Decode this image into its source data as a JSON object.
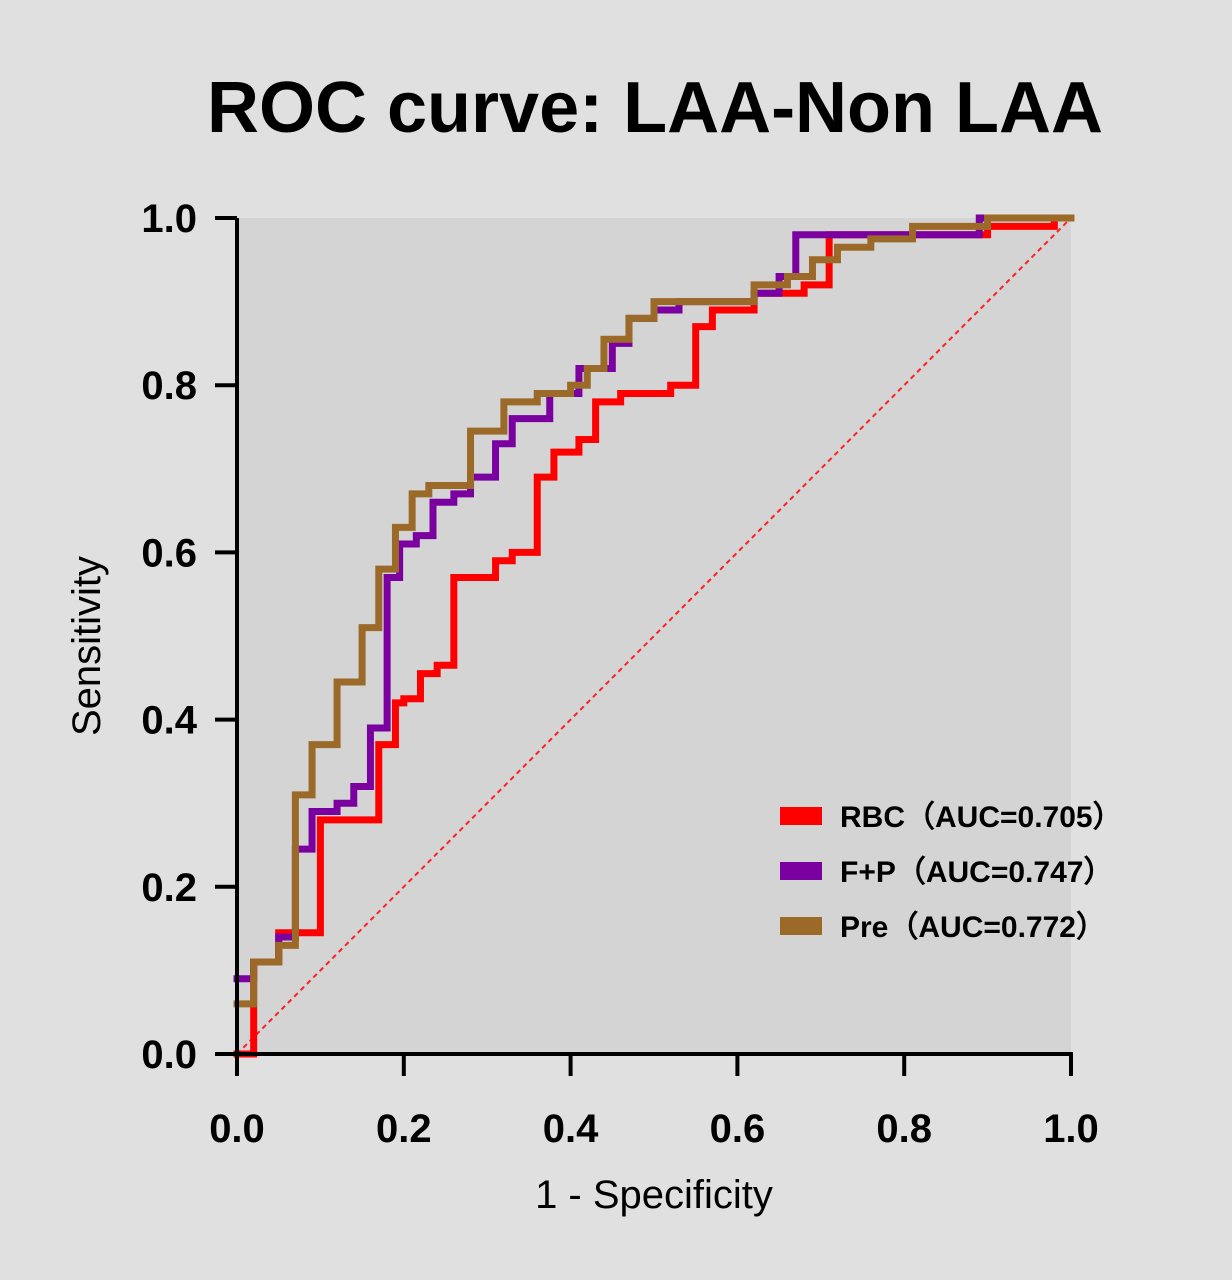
{
  "chart_data": {
    "type": "line",
    "title": "ROC curve:  LAA-Non LAA",
    "xlabel": "1 - Specificity",
    "ylabel": "Sensitivity",
    "xlim": [
      0,
      1
    ],
    "ylim": [
      0,
      1
    ],
    "xticks": [
      "0.0",
      "0.2",
      "0.4",
      "0.6",
      "0.8",
      "1.0"
    ],
    "yticks": [
      "0.0",
      "0.2",
      "0.4",
      "0.6",
      "0.8",
      "1.0"
    ],
    "grid": false,
    "legend_position": "bottom-right",
    "reference_line": {
      "x": [
        0,
        1
      ],
      "y": [
        0,
        1
      ],
      "color": "#ff2020",
      "style": "dashed"
    },
    "series": [
      {
        "name": "RBC（AUC=0.705）",
        "color": "#ff0000",
        "step": true,
        "x": [
          0,
          0.02,
          0.05,
          0.1,
          0.17,
          0.19,
          0.2,
          0.22,
          0.24,
          0.26,
          0.31,
          0.33,
          0.36,
          0.38,
          0.41,
          0.43,
          0.46,
          0.52,
          0.55,
          0.57,
          0.62,
          0.68,
          0.71,
          0.76,
          0.9,
          0.98,
          1.0
        ],
        "y": [
          0,
          0.11,
          0.145,
          0.28,
          0.37,
          0.42,
          0.425,
          0.455,
          0.465,
          0.57,
          0.59,
          0.6,
          0.69,
          0.72,
          0.735,
          0.78,
          0.79,
          0.8,
          0.87,
          0.89,
          0.91,
          0.92,
          0.98,
          0.98,
          0.99,
          1.0,
          1.0
        ]
      },
      {
        "name": "F+P（AUC=0.747）",
        "color": "#7a00a0",
        "step": true,
        "x": [
          0,
          0.02,
          0.05,
          0.07,
          0.09,
          0.12,
          0.14,
          0.16,
          0.18,
          0.195,
          0.215,
          0.235,
          0.26,
          0.28,
          0.31,
          0.33,
          0.35,
          0.375,
          0.41,
          0.45,
          0.47,
          0.5,
          0.53,
          0.62,
          0.65,
          0.67,
          0.72,
          0.85,
          0.89,
          1.0
        ],
        "y": [
          0.09,
          0.11,
          0.14,
          0.245,
          0.29,
          0.3,
          0.32,
          0.39,
          0.57,
          0.61,
          0.62,
          0.66,
          0.67,
          0.69,
          0.73,
          0.76,
          0.76,
          0.79,
          0.82,
          0.85,
          0.88,
          0.89,
          0.9,
          0.91,
          0.93,
          0.98,
          0.98,
          0.98,
          1.0,
          1.0
        ]
      },
      {
        "name": "Pre（AUC=0.772）",
        "color": "#9c6a28",
        "step": true,
        "x": [
          0,
          0.02,
          0.05,
          0.07,
          0.09,
          0.12,
          0.15,
          0.17,
          0.19,
          0.21,
          0.23,
          0.28,
          0.32,
          0.36,
          0.4,
          0.42,
          0.44,
          0.47,
          0.5,
          0.62,
          0.66,
          0.69,
          0.72,
          0.76,
          0.81,
          0.9,
          1.0
        ],
        "y": [
          0.06,
          0.11,
          0.13,
          0.31,
          0.37,
          0.445,
          0.51,
          0.58,
          0.63,
          0.67,
          0.68,
          0.745,
          0.78,
          0.79,
          0.8,
          0.82,
          0.855,
          0.88,
          0.9,
          0.92,
          0.93,
          0.95,
          0.965,
          0.975,
          0.99,
          1.0,
          1.0
        ]
      }
    ]
  }
}
